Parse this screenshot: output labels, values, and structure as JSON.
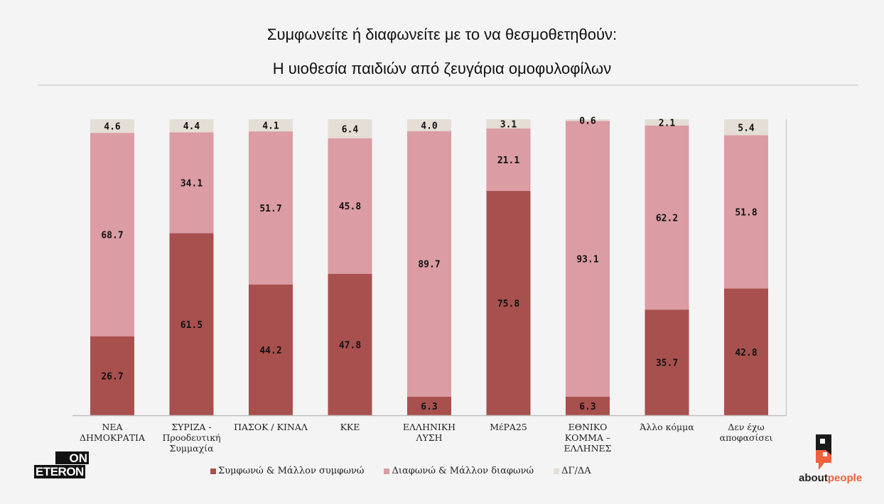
{
  "header": {
    "title_line1": "Συμφωνείτε ή διαφωνείτε με το να θεσμοθετηθούν:",
    "title_line2": "Η υιοθεσία παιδιών από ζευγάρια ομοφυλοφίλων"
  },
  "logos": {
    "left_top": "ON",
    "left_bottom": "ETERON",
    "right_part1": "about",
    "right_part2": "people"
  },
  "legend": [
    {
      "label": "Συμφωνώ & Μάλλον συμφωνώ",
      "color": "#a8504e"
    },
    {
      "label": "Διαφωνώ & Μάλλον διαφωνώ",
      "color": "#db9ca4"
    },
    {
      "label": "ΔΓ/ΔΑ",
      "color": "#e4ded6"
    }
  ],
  "chart_data": {
    "type": "bar",
    "stacked": true,
    "title": "Συμφωνείτε ή διαφωνείτε με το να θεσμοθετηθούν: Η υιοθεσία παιδιών από ζευγάρια ομοφυλοφίλων",
    "xlabel": "",
    "ylabel": "",
    "ylim": [
      0,
      100
    ],
    "grid": false,
    "legend_position": "bottom",
    "categories": [
      [
        "ΝΕΑ",
        "ΔΗΜΟΚΡΑΤΙΑ"
      ],
      [
        "ΣΥΡΙΖΑ -",
        "Προοδευτική",
        "Συμμαχία"
      ],
      [
        "ΠΑΣΟΚ / ΚΙΝΑΛ"
      ],
      [
        "ΚΚΕ"
      ],
      [
        "ΕΛΛΗΝΙΚΗ",
        "ΛΥΣΗ"
      ],
      [
        "ΜέΡΑ25"
      ],
      [
        "ΕΘΝΙΚΟ",
        "ΚΟΜΜΑ –",
        "ΕΛΛΗΝΕΣ"
      ],
      [
        "Άλλο κόμμα"
      ],
      [
        "Δεν έχω",
        "αποφασίσει"
      ]
    ],
    "series": [
      {
        "name": "Συμφωνώ & Μάλλον συμφωνώ",
        "color": "#a8504e",
        "values": [
          "26.7",
          "61.5",
          "44.2",
          "47.8",
          "6.3",
          "75.8",
          "6.3",
          "35.7",
          "42.8"
        ]
      },
      {
        "name": "Διαφωνώ & Μάλλον διαφωνώ",
        "color": "#db9ca4",
        "values": [
          "68.7",
          "34.1",
          "51.7",
          "45.8",
          "89.7",
          "21.1",
          "93.1",
          "62.2",
          "51.8"
        ]
      },
      {
        "name": "ΔΓ/ΔΑ",
        "color": "#e4ded6",
        "values": [
          "4.6",
          "4.4",
          "4.1",
          "6.4",
          "4.0",
          "3.1",
          "0.6",
          "2.1",
          "5.4"
        ]
      }
    ]
  }
}
